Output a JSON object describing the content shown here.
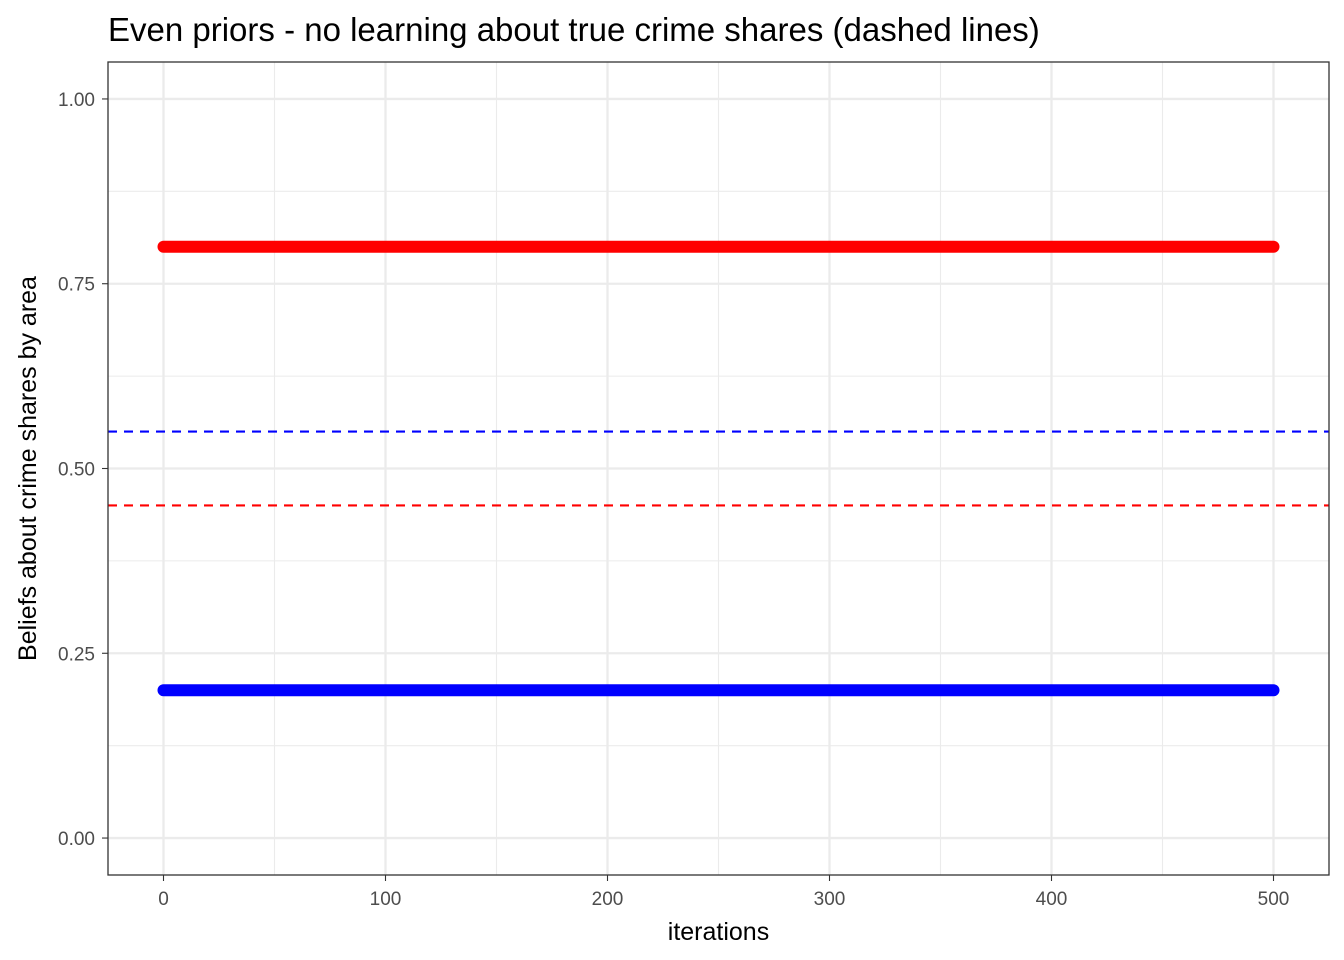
{
  "chart_data": {
    "type": "line",
    "title": "Even priors - no learning about true crime shares (dashed lines)",
    "xlabel": "iterations",
    "ylabel": "Beliefs about crime shares by area",
    "xlim": [
      -25,
      525
    ],
    "ylim": [
      -0.05,
      1.05
    ],
    "x_ticks": [
      0,
      100,
      200,
      300,
      400,
      500
    ],
    "x_tick_labels": [
      "0",
      "100",
      "200",
      "300",
      "400",
      "500"
    ],
    "x_minor_ticks": [
      50,
      150,
      250,
      350,
      450
    ],
    "y_ticks": [
      0,
      0.25,
      0.5,
      0.75,
      1.0
    ],
    "y_tick_labels": [
      "0.00",
      "0.25",
      "0.50",
      "0.75",
      "1.00"
    ],
    "y_minor_ticks": [
      0.125,
      0.375,
      0.625,
      0.875
    ],
    "grid": true,
    "series": [
      {
        "style": "solid",
        "color": "#ff0000",
        "x": [
          0,
          500
        ],
        "y": [
          0.8,
          0.8
        ]
      },
      {
        "style": "solid",
        "color": "#0000ff",
        "x": [
          0,
          500
        ],
        "y": [
          0.2,
          0.2
        ]
      },
      {
        "style": "dashed",
        "color": "#0000ff",
        "y": 0.55
      },
      {
        "style": "dashed",
        "color": "#ff0000",
        "y": 0.45
      }
    ]
  }
}
